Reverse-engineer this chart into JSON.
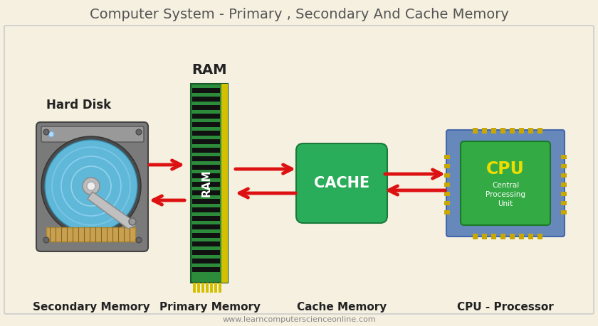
{
  "title": "Computer System - Primary , Secondary And Cache Memory",
  "title_fontsize": 14,
  "title_color": "#555555",
  "bg_color": "#f5f0e0",
  "border_color": "#cccccc",
  "website": "www.learncomputerscienceonline.com",
  "labels": {
    "hard_disk": "Hard Disk",
    "ram_top": "RAM",
    "ram_body": "RAM",
    "cache": "CACHE",
    "cpu_top": "CPU",
    "cpu_sub": "Central\nProcessing\nUnit",
    "secondary": "Secondary Memory",
    "primary": "Primary Memory",
    "cache_mem": "Cache Memory",
    "cpu_proc": "CPU - Processor"
  },
  "colors": {
    "ram_green": "#2d8c3c",
    "ram_yellow_stripe": "#d4c000",
    "cache_green": "#2aad5a",
    "cpu_blue": "#6688bb",
    "cpu_inner_green": "#33aa44",
    "cpu_gold": "#c8a800",
    "arrow_red": "#dd1111",
    "label_dark": "#222222",
    "ram_text": "#ffffff",
    "cache_text": "#ffffff",
    "cpu_text_yellow": "#eedd00",
    "cpu_text_white": "#ffffff"
  }
}
